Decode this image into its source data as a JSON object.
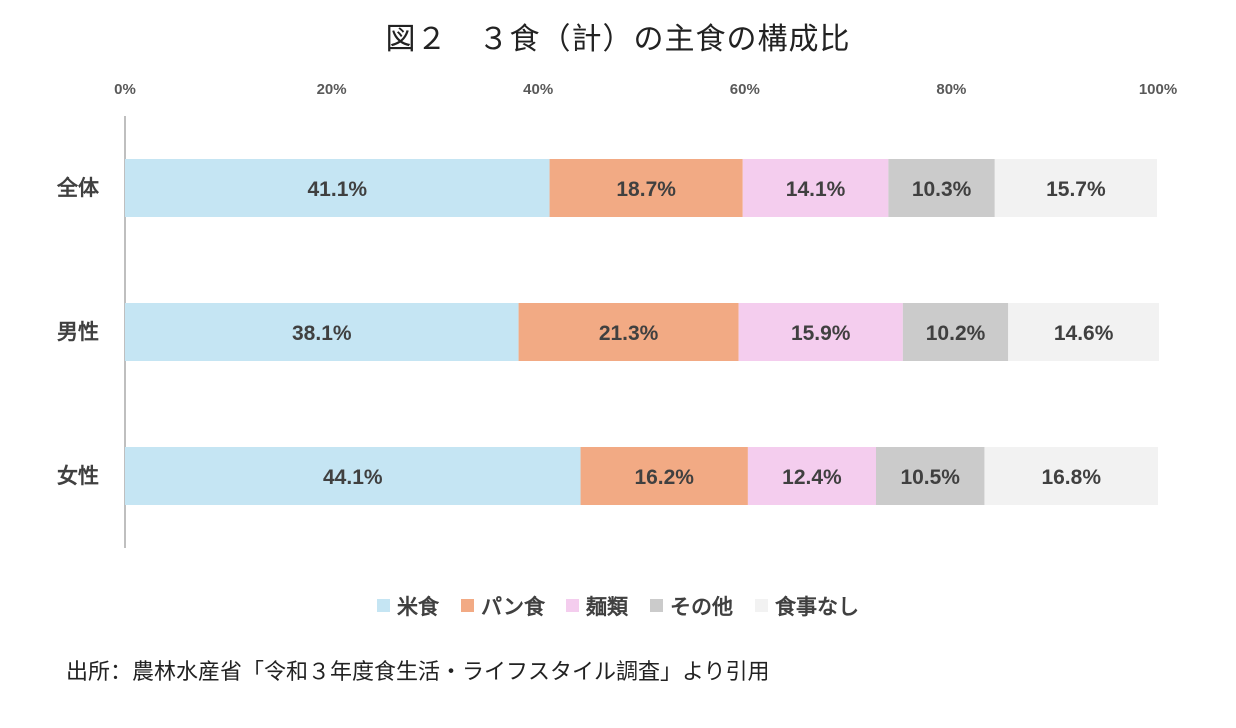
{
  "title": "図２　３食（計）の主食の構成比",
  "source_note": "出所：農林水産省「令和３年度食生活・ライフスタイル調査」より引用",
  "chart_data": {
    "type": "bar",
    "orientation": "horizontal",
    "stacked": "percent",
    "categories": [
      "全体",
      "男性",
      "女性"
    ],
    "x_ticks": [
      "0%",
      "20%",
      "40%",
      "60%",
      "80%",
      "100%"
    ],
    "xlim": [
      0,
      100
    ],
    "x_axis_position": "top",
    "grid": false,
    "legend_position": "bottom",
    "series": [
      {
        "name": "米食",
        "color": "#c5e5f3",
        "values": [
          41.1,
          38.1,
          44.1
        ],
        "labels": [
          "41.1%",
          "38.1%",
          "44.1%"
        ]
      },
      {
        "name": "パン食",
        "color": "#f2aa84",
        "values": [
          18.7,
          21.3,
          16.2
        ],
        "labels": [
          "18.7%",
          "21.3%",
          "16.2%"
        ]
      },
      {
        "name": "麺類",
        "color": "#f4cdee",
        "values": [
          14.1,
          15.9,
          12.4
        ],
        "labels": [
          "14.1%",
          "15.9%",
          "12.4%"
        ]
      },
      {
        "name": "その他",
        "color": "#cbcbcb",
        "values": [
          10.3,
          10.2,
          10.5
        ],
        "labels": [
          "10.3%",
          "10.2%",
          "10.5%"
        ]
      },
      {
        "name": "食事なし",
        "color": "#f2f2f2",
        "values": [
          15.7,
          14.6,
          16.8
        ],
        "labels": [
          "15.7%",
          "14.6%",
          "16.8%"
        ]
      }
    ]
  }
}
